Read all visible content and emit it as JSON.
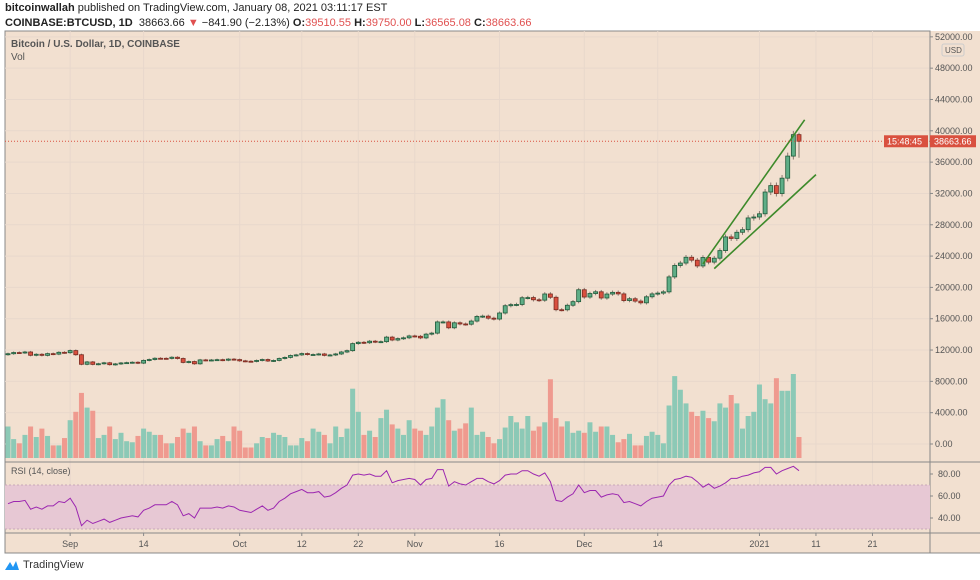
{
  "header": {
    "author": "bitcoinwallah",
    "published": "published on TradingView.com, January 08, 2021 03:11:17 EST",
    "symbol": "COINBASE:BTCUSD, 1D",
    "last": "38663.66",
    "change": "−841.90 (−2.13%)",
    "o_label": "O:",
    "o": "39510.55",
    "h_label": "H:",
    "h": "39750.00",
    "l_label": "L:",
    "l": "36565.08",
    "c_label": "C:",
    "c": "38663.66"
  },
  "footer": {
    "brand": "TradingView"
  },
  "colors": {
    "background": "#f2e0d0",
    "up": "#5fae87",
    "down": "#d9503f",
    "vol_up": "#8cc9b6",
    "vol_down": "#ef9a8f",
    "rsi": "#9c27b0",
    "trendline": "#3d8a2a",
    "price_tag": "#d9503f"
  },
  "chart_data": {
    "type": "candlestick",
    "title": "Bitcoin / U.S. Dollar, 1D, COINBASE",
    "volume_label": "Vol",
    "currency": "USD",
    "start_date": "2020-08-21",
    "first_open": 11400,
    "close": [
      11530,
      11680,
      11650,
      11750,
      11330,
      11460,
      11320,
      11540,
      11480,
      11710,
      11660,
      11930,
      11400,
      10180,
      10480,
      10170,
      10250,
      10370,
      10130,
      10230,
      10350,
      10390,
      10440,
      10330,
      10680,
      10790,
      10950,
      10940,
      10930,
      11080,
      10920,
      10420,
      10530,
      10240,
      10740,
      10690,
      10730,
      10770,
      10700,
      10840,
      10780,
      10620,
      10570,
      10550,
      10670,
      10790,
      10600,
      10670,
      10920,
      11060,
      11300,
      11380,
      11550,
      11430,
      11430,
      11500,
      11320,
      11370,
      11500,
      11750,
      11920,
      12820,
      12990,
      12930,
      13130,
      13040,
      13070,
      13650,
      13280,
      13460,
      13560,
      13800,
      13760,
      13550,
      14030,
      14160,
      15590,
      15590,
      14840,
      15480,
      15330,
      15300,
      15700,
      16290,
      16330,
      16070,
      15960,
      16730,
      17660,
      17800,
      17820,
      18680,
      18700,
      18420,
      18370,
      19160,
      18740,
      17150,
      17140,
      17720,
      18180,
      19700,
      18770,
      19220,
      19440,
      18650,
      19150,
      19370,
      19170,
      18320,
      18550,
      18250,
      18030,
      18800,
      19170,
      19270,
      19430,
      21340,
      22800,
      23110,
      23850,
      23480,
      22740,
      23820,
      23230,
      23730,
      24700,
      26450,
      26250,
      27040,
      27370,
      28870,
      28990,
      29400,
      32180,
      33000,
      31990,
      33950,
      36770,
      39510,
      38663.66
    ],
    "last_candle": {
      "open": 39510.55,
      "high": 39750.0,
      "low": 36565.08,
      "close": 38663.66
    },
    "volume_relative": [
      30,
      18,
      14,
      22,
      30,
      20,
      28,
      21,
      12,
      12,
      19,
      36,
      44,
      62,
      48,
      45,
      19,
      22,
      30,
      18,
      24,
      16,
      15,
      21,
      28,
      25,
      22,
      22,
      14,
      14,
      20,
      28,
      24,
      30,
      16,
      12,
      12,
      18,
      21,
      16,
      30,
      26,
      10,
      10,
      14,
      20,
      19,
      24,
      22,
      20,
      12,
      12,
      19,
      16,
      28,
      25,
      22,
      14,
      30,
      20,
      28,
      66,
      44,
      22,
      26,
      20,
      38,
      46,
      32,
      28,
      22,
      36,
      28,
      26,
      22,
      30,
      48,
      56,
      36,
      26,
      28,
      33,
      48,
      22,
      25,
      20,
      14,
      18,
      29,
      40,
      34,
      28,
      40,
      26,
      30,
      34,
      75,
      38,
      30,
      35,
      24,
      26,
      24,
      34,
      25,
      30,
      30,
      22,
      15,
      18,
      23,
      12,
      12,
      21,
      25,
      22,
      14,
      50,
      78,
      65,
      52,
      44,
      40,
      45,
      38,
      35,
      52,
      48,
      60,
      52,
      28,
      40,
      44,
      70,
      56,
      52,
      76,
      64,
      64,
      80,
      20
    ],
    "price_axis": {
      "ticks": [
        52000,
        48000,
        44000,
        40000,
        36000,
        32000,
        28000,
        24000,
        20000,
        16000,
        12000,
        8000,
        4000,
        0
      ],
      "format": "0.00"
    },
    "current_price_label": "38663.66",
    "countdown_label": "15:48:45",
    "time_ticks": [
      {
        "label": "Sep",
        "date": "2020-09-01"
      },
      {
        "label": "14",
        "date": "2020-09-14"
      },
      {
        "label": "Oct",
        "date": "2020-10-01"
      },
      {
        "label": "12",
        "date": "2020-10-12"
      },
      {
        "label": "22",
        "date": "2020-10-22"
      },
      {
        "label": "Nov",
        "date": "2020-11-01"
      },
      {
        "label": "16",
        "date": "2020-11-16"
      },
      {
        "label": "Dec",
        "date": "2020-12-01"
      },
      {
        "label": "14",
        "date": "2020-12-14"
      },
      {
        "label": "2021",
        "date": "2021-01-01"
      },
      {
        "label": "11",
        "date": "2021-01-11"
      },
      {
        "label": "21",
        "date": "2021-01-21"
      }
    ],
    "trendlines": [
      {
        "from": {
          "date": "2020-12-22",
          "price": 23000
        },
        "to": {
          "date": "2021-01-09",
          "price": 41400
        }
      },
      {
        "from": {
          "date": "2020-12-24",
          "price": 22400
        },
        "to": {
          "date": "2021-01-11",
          "price": 34400
        }
      }
    ],
    "rsi": {
      "label": "RSI (14, close)",
      "ticks": [
        80,
        60,
        40
      ],
      "band": [
        30,
        70
      ],
      "values": [
        53,
        55,
        55,
        56,
        48,
        50,
        48,
        51,
        51,
        55,
        54,
        58,
        50,
        33,
        38,
        35,
        37,
        39,
        36,
        38,
        40,
        41,
        42,
        41,
        47,
        49,
        52,
        52,
        52,
        55,
        52,
        42,
        44,
        40,
        49,
        49,
        49,
        50,
        49,
        51,
        50,
        47,
        46,
        45,
        48,
        51,
        47,
        49,
        55,
        58,
        62,
        64,
        66,
        63,
        63,
        64,
        59,
        60,
        63,
        67,
        70,
        79,
        80,
        79,
        80,
        78,
        78,
        83,
        72,
        74,
        75,
        76,
        75,
        70,
        75,
        76,
        84,
        84,
        69,
        73,
        71,
        70,
        73,
        76,
        76,
        73,
        71,
        74,
        79,
        80,
        80,
        83,
        83,
        80,
        78,
        81,
        73,
        56,
        55,
        59,
        62,
        70,
        63,
        65,
        65,
        59,
        61,
        62,
        61,
        54,
        55,
        53,
        51,
        55,
        58,
        59,
        60,
        70,
        75,
        76,
        78,
        77,
        73,
        68,
        71,
        67,
        69,
        72,
        76,
        76,
        78,
        79,
        81,
        82,
        86,
        86,
        80,
        83,
        85,
        87,
        83
      ]
    }
  }
}
